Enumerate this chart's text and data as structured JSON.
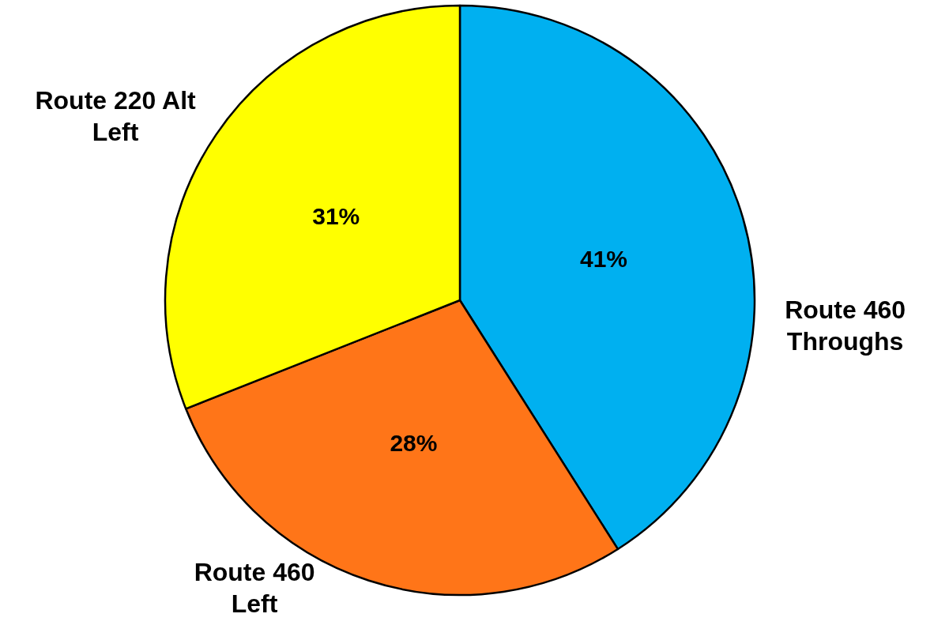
{
  "chart_data": {
    "type": "pie",
    "categories": [
      "Route 460\nThroughs",
      "Route 460\nLeft",
      "Route 220 Alt\nLeft"
    ],
    "values": [
      41,
      28,
      31
    ],
    "colors": [
      "#00b0f0",
      "#ff7518",
      "#ffff00"
    ],
    "value_labels": [
      "41%",
      "28%",
      "31%"
    ]
  }
}
